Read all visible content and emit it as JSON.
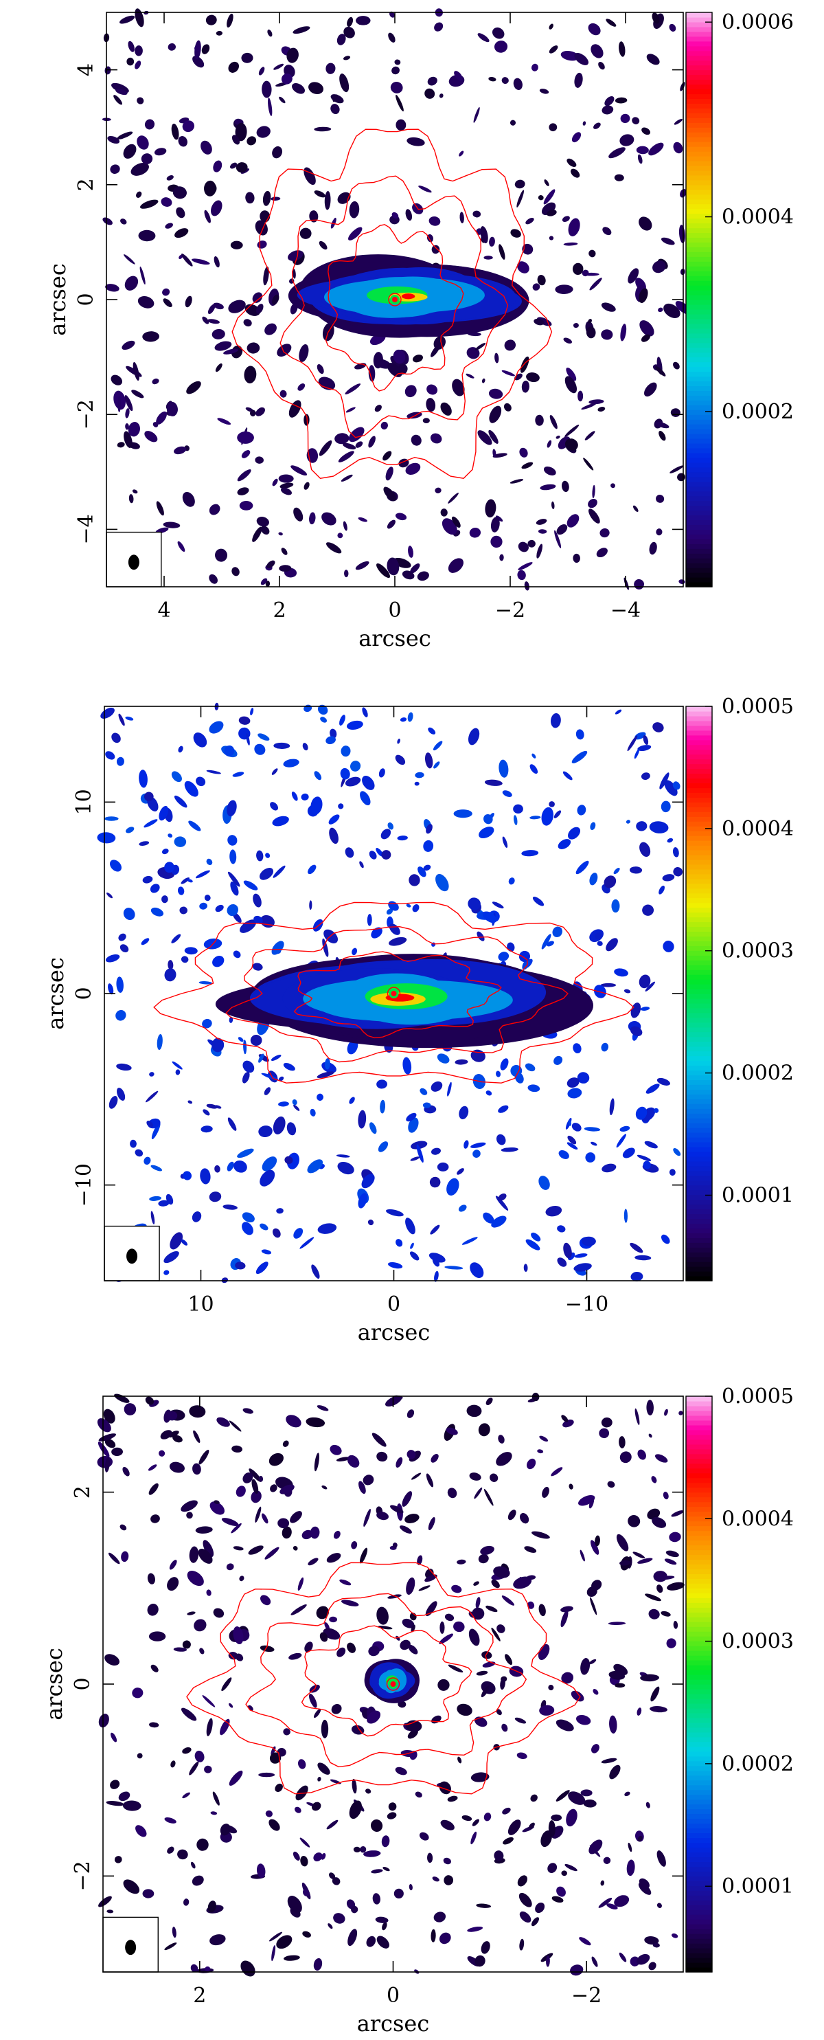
{
  "chart_data": [
    {
      "type": "heatmap",
      "xlabel": "arcsec",
      "ylabel": "arcsec",
      "xlim": [
        5,
        -5
      ],
      "ylim": [
        -5,
        5
      ],
      "xticks": [
        4,
        2,
        0,
        -2,
        -4
      ],
      "xtick_labels": [
        "4",
        "2",
        "0",
        "−2",
        "−4"
      ],
      "yticks": [
        -4,
        -2,
        0,
        2,
        4
      ],
      "ytick_labels": [
        "−4",
        "−2",
        "0",
        "2",
        "4"
      ],
      "colorbar": {
        "range": [
          2e-05,
          0.00061
        ],
        "ticks": [
          0.0002,
          0.0004,
          0.0006
        ],
        "tick_labels": [
          "0.0002",
          "0.0004",
          "0.0006"
        ]
      },
      "beam": "bottom-left",
      "features": {
        "peak_at": [
          0,
          0
        ],
        "bright_emission_extent_x": [
          1.9,
          -2.3
        ],
        "bright_emission_extent_y": [
          -0.6,
          0.7
        ],
        "contour_color": "#ff0000",
        "contour_extent_x": [
          2.5,
          -2.4
        ],
        "contour_extent_y": [
          -3.0,
          2.8
        ]
      },
      "noise_seed": 11
    },
    {
      "type": "heatmap",
      "xlabel": "arcsec",
      "ylabel": "arcsec",
      "xlim": [
        15,
        -15
      ],
      "ylim": [
        -15,
        15
      ],
      "xticks": [
        10,
        0,
        -10
      ],
      "xtick_labels": [
        "10",
        "0",
        "−10"
      ],
      "yticks": [
        -10,
        0,
        10
      ],
      "ytick_labels": [
        "−10",
        "0",
        "10"
      ],
      "colorbar": {
        "range": [
          3e-05,
          0.0005
        ],
        "ticks": [
          0.0001,
          0.0002,
          0.0003,
          0.0004,
          0.0005
        ],
        "tick_labels": [
          "0.0001",
          "0.0002",
          "0.0003",
          "0.0004",
          "0.0005"
        ]
      },
      "beam": "bottom-left",
      "features": {
        "peak_at": [
          0,
          0
        ],
        "bright_emission_extent_x": [
          8.0,
          -9.0
        ],
        "bright_emission_extent_y": [
          -2.5,
          2.0
        ],
        "contour_color": "#ff0000",
        "contour_extent_x": [
          11.0,
          -11.0
        ],
        "contour_extent_y": [
          -4.5,
          4.5
        ]
      },
      "noise_seed": 29
    },
    {
      "type": "heatmap",
      "xlabel": "arcsec",
      "ylabel": "arcsec",
      "xlim": [
        3,
        -3
      ],
      "ylim": [
        -3,
        3
      ],
      "xticks": [
        2,
        0,
        -2
      ],
      "xtick_labels": [
        "2",
        "0",
        "−2"
      ],
      "yticks": [
        -2,
        0,
        2
      ],
      "ytick_labels": [
        "−2",
        "0",
        "2"
      ],
      "colorbar": {
        "range": [
          3e-05,
          0.0005
        ],
        "ticks": [
          0.0001,
          0.0002,
          0.0003,
          0.0004,
          0.0005
        ],
        "tick_labels": [
          "0.0001",
          "0.0002",
          "0.0003",
          "0.0004",
          "0.0005"
        ]
      },
      "beam": "bottom-left",
      "features": {
        "peak_at": [
          0,
          0
        ],
        "bright_emission_extent_x": [
          0.25,
          -0.25
        ],
        "bright_emission_extent_y": [
          -0.2,
          0.25
        ],
        "contour_color": "#ff0000",
        "contour_extent_x": [
          1.9,
          -1.7
        ],
        "contour_extent_y": [
          -1.1,
          1.2
        ]
      },
      "noise_seed": 47
    }
  ]
}
